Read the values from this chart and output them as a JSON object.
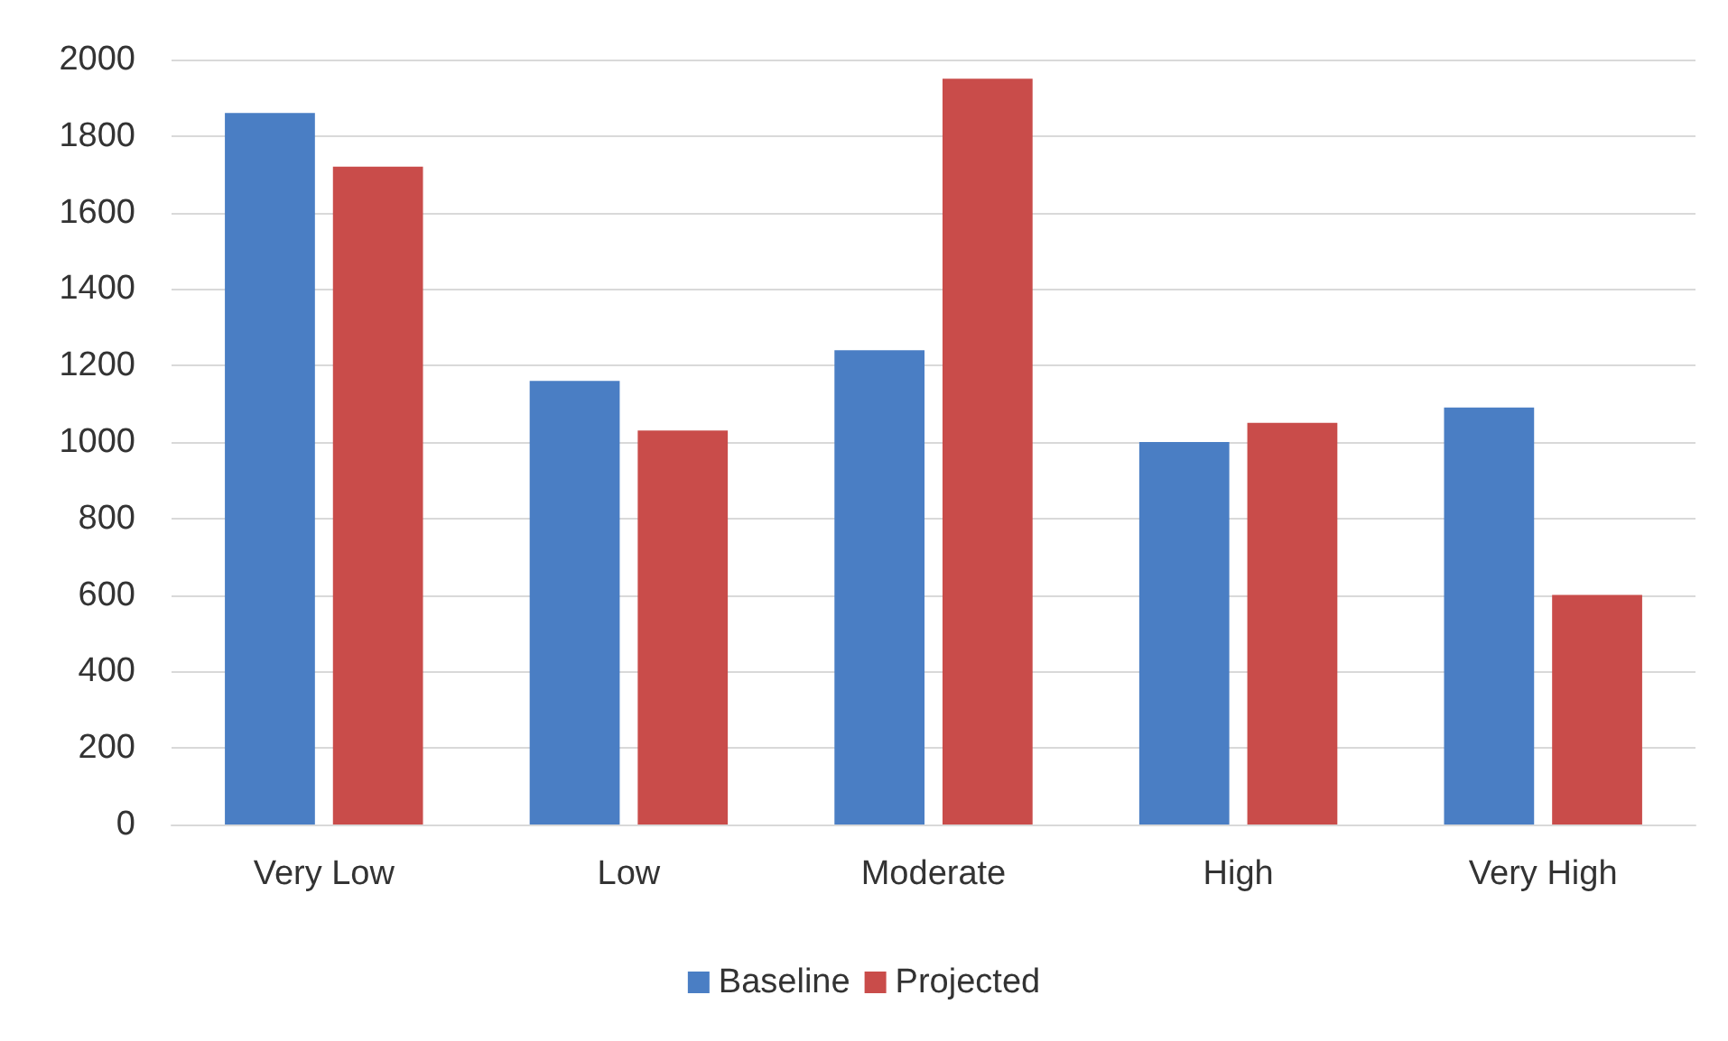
{
  "chart_data": {
    "type": "bar",
    "categories": [
      "Very Low",
      "Low",
      "Moderate",
      "High",
      "Very High"
    ],
    "series": [
      {
        "name": "Baseline",
        "color": "#4a7ec4",
        "values": [
          1860,
          1160,
          1240,
          1000,
          1090
        ]
      },
      {
        "name": "Projected",
        "color": "#c94c4a",
        "values": [
          1720,
          1030,
          1950,
          1050,
          600
        ]
      }
    ],
    "ylim": [
      0,
      2000
    ],
    "yticks": [
      0,
      200,
      400,
      600,
      800,
      1000,
      1200,
      1400,
      1600,
      1800,
      2000
    ],
    "grid": "y",
    "legend": "bottom"
  }
}
